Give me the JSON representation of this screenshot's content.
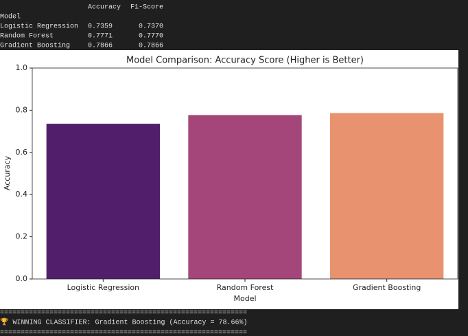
{
  "table": {
    "index_name": "Model",
    "columns": [
      "Accuracy",
      "F1-Score"
    ],
    "rows": [
      [
        "Logistic Regression",
        "0.7359",
        "0.7370"
      ],
      [
        "Random Forest",
        "0.7771",
        "0.7770"
      ],
      [
        "Gradient Boosting",
        "0.7866",
        "0.7866"
      ]
    ]
  },
  "chart_data": {
    "type": "bar",
    "title": "Model Comparison: Accuracy Score (Higher is Better)",
    "x_label": "Model",
    "y_label": "Accuracy",
    "categories": [
      "Logistic Regression",
      "Random Forest",
      "Gradient Boosting"
    ],
    "values": [
      0.7359,
      0.7771,
      0.7866
    ],
    "colors": [
      "#511e6b",
      "#a5467a",
      "#e8926f"
    ],
    "ylim": [
      0,
      1
    ],
    "yticks": [
      {
        "value": 0,
        "label": "0.0"
      },
      0.2,
      0.4,
      0.6,
      0.8,
      {
        "value": 1,
        "label": "1.0"
      }
    ]
  },
  "output": {
    "separator": "============================================================",
    "message": "🏆 WINNING CLASSIFIER: Gradient Boosting (Accuracy = 78.66%)"
  }
}
